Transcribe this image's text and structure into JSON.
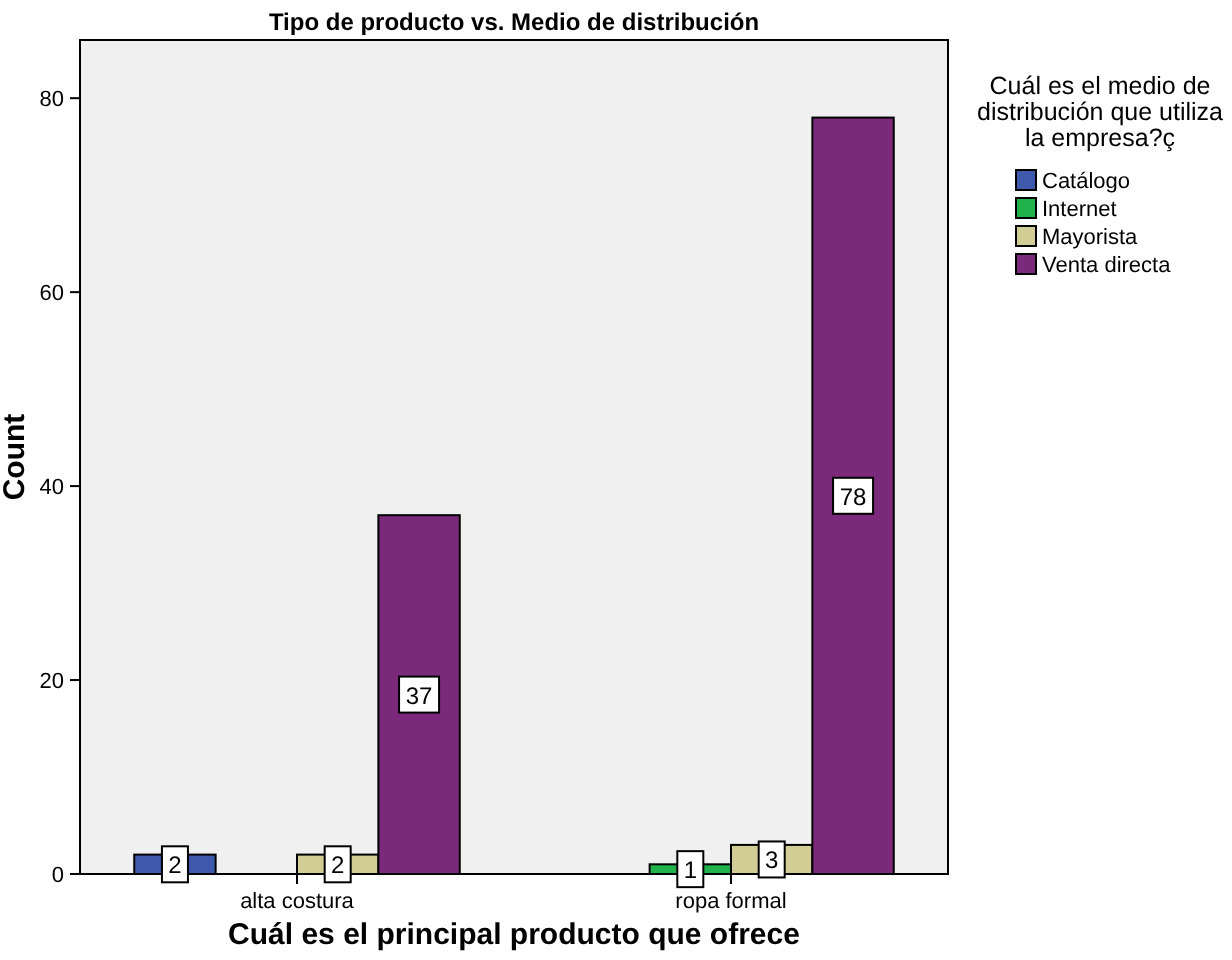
{
  "chart_data": {
    "type": "bar",
    "title": "Tipo de producto vs. Medio de distribución",
    "xlabel": "Cuál es el principal producto que ofrece",
    "ylabel": "Count",
    "legend_title": "Cuál es el medio de distribución que utiliza la empresa?ç",
    "categories": [
      "alta costura",
      "ropa formal"
    ],
    "series": [
      {
        "name": "Catálogo",
        "color": "#3e58ac",
        "values": [
          2,
          null
        ]
      },
      {
        "name": "Internet",
        "color": "#21b24b",
        "values": [
          null,
          1
        ]
      },
      {
        "name": "Mayorista",
        "color": "#d2cd95",
        "values": [
          2,
          3
        ]
      },
      {
        "name": "Venta directa",
        "color": "#7b2a7b",
        "values": [
          37,
          78
        ]
      }
    ],
    "ylim": [
      0,
      86
    ],
    "yticks": [
      0,
      20,
      40,
      60,
      80
    ],
    "grid": false,
    "legend": "right",
    "data_labels": true
  }
}
